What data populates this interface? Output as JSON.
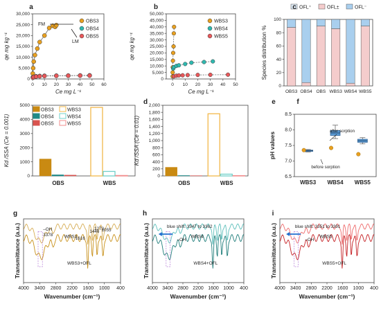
{
  "figure": {
    "panel_letters": [
      "a",
      "b",
      "c",
      "d",
      "e",
      "f",
      "g",
      "h",
      "i"
    ]
  },
  "colors": {
    "orange": "#e8a020",
    "teal": "#2fb9b0",
    "red": "#e8585a",
    "obs3_bar": "#c98a12",
    "obs4_bar": "#1f8a87",
    "obs5_bar": "#d9534f",
    "wbs3_bar": "#f2b84b",
    "wbs4_bar": "#6fd0c9",
    "wbs5_bar": "#f28d8d",
    "cation": "#dde9f5",
    "zwitterion": "#f4cccc",
    "anion": "#a9cfee",
    "box": "#5b9bd5",
    "ir_obs": "#c8901a",
    "ir_wbs4": "#27a9a4",
    "ir_wbs5": "#e8383a"
  },
  "chart_data": [
    {
      "id": "a",
      "type": "scatter",
      "xlabel": "Ce mg L⁻¹",
      "ylabel": "qe mg kg⁻¹",
      "xlim": [
        0,
        60
      ],
      "ylim": [
        0,
        30000
      ],
      "xticks": [
        0,
        10,
        20,
        30,
        40,
        50,
        60
      ],
      "yticks": [
        0,
        5000,
        10000,
        15000,
        20000,
        25000,
        30000
      ],
      "ytick_labels": [
        "0",
        "5,000",
        "10,000",
        "15,000",
        "20,000",
        "25,000",
        "30,000"
      ],
      "legend": [
        "OBS3",
        "OBS4",
        "OBS5"
      ],
      "legend_position": "top-right",
      "annotations": [
        "FM",
        "LM"
      ],
      "series": [
        {
          "name": "OBS3",
          "color": "orange",
          "x": [
            0.2,
            0.5,
            1,
            2,
            4,
            6,
            10,
            14,
            17,
            19,
            20
          ],
          "y": [
            2500,
            5000,
            8000,
            11000,
            14000,
            17000,
            20000,
            23500,
            24500,
            24000,
            24800
          ]
        },
        {
          "name": "OBS4",
          "color": "teal",
          "x": [
            0.3,
            1,
            3,
            6,
            10,
            20,
            30,
            40,
            48
          ],
          "y": [
            800,
            1000,
            1200,
            1350,
            1450,
            1500,
            1550,
            1600,
            1650
          ]
        },
        {
          "name": "OBS5",
          "color": "red",
          "x": [
            0.3,
            1,
            3,
            6,
            10,
            20,
            30,
            40,
            48
          ],
          "y": [
            600,
            900,
            1100,
            1250,
            1350,
            1450,
            1500,
            1550,
            1550
          ]
        }
      ]
    },
    {
      "id": "b",
      "type": "scatter",
      "xlabel": "Ce mg L⁻¹",
      "ylabel": "qe mg kg⁻¹",
      "xlim": [
        -5,
        50
      ],
      "ylim": [
        0,
        50000
      ],
      "xticks": [
        0,
        10,
        20,
        30,
        40,
        50
      ],
      "yticks": [
        0,
        5000,
        10000,
        15000,
        20000,
        25000,
        30000,
        35000,
        40000,
        45000,
        50000
      ],
      "ytick_labels": [
        "0",
        "5,000",
        "10,000",
        "15,000",
        "20,000",
        "25,000",
        "30,000",
        "35,000",
        "40,000",
        "45,000",
        "50,000"
      ],
      "legend": [
        "WBS3",
        "WBS4",
        "WBS5"
      ],
      "legend_position": "top-right",
      "series": [
        {
          "name": "WBS3",
          "color": "orange",
          "x": [
            0.05,
            0.1,
            0.2,
            0.3,
            0.5,
            0.8,
            1.0,
            1.2
          ],
          "y": [
            2000,
            5000,
            9000,
            14000,
            20000,
            25000,
            35000,
            40000
          ]
        },
        {
          "name": "WBS4",
          "color": "teal",
          "x": [
            0.5,
            1,
            3,
            5,
            10,
            15,
            25,
            32
          ],
          "y": [
            8000,
            9000,
            10000,
            10500,
            11500,
            12500,
            13000,
            13500
          ]
        },
        {
          "name": "WBS5",
          "color": "red",
          "x": [
            1,
            3,
            5,
            8,
            12,
            20,
            30,
            44
          ],
          "y": [
            2000,
            2500,
            2700,
            2800,
            3000,
            3100,
            3200,
            3300
          ]
        }
      ]
    },
    {
      "id": "c",
      "type": "bar",
      "ylabel": "Species distribution %",
      "ylim": [
        0,
        100
      ],
      "yticks": [
        0,
        20,
        40,
        60,
        80,
        100
      ],
      "categories": [
        "OBS3",
        "OBS4",
        "OBS",
        "WBS3",
        "WBS4",
        "WBS5"
      ],
      "legend": [
        "OFL⁺",
        "OFL±",
        "OFL⁻"
      ],
      "legend_position": "top",
      "series": [
        {
          "name": "OFL⁺",
          "color": "cation",
          "values": [
            0,
            0,
            0,
            0,
            0,
            0
          ]
        },
        {
          "name": "OFL±",
          "color": "zwitterion",
          "values": [
            88,
            5,
            90,
            86,
            4,
            90
          ]
        },
        {
          "name": "OFL⁻",
          "color": "anion",
          "values": [
            12,
            95,
            10,
            14,
            96,
            10
          ]
        }
      ]
    },
    {
      "id": "d",
      "type": "bar",
      "ylabel": "Kd /SSA (Ce = 0.001)",
      "ylim": [
        0,
        5000
      ],
      "yticks": [
        0,
        1000,
        2000,
        3000,
        4000,
        5000
      ],
      "categories": [
        "OBS",
        "WBS"
      ],
      "legend": [
        "OBS3",
        "WBS3",
        "OBS4",
        "WBS4",
        "OBS5",
        "WBS5"
      ],
      "legend_position": "top-left",
      "series": [
        {
          "name": "OBS3",
          "color": "obs3_bar",
          "values": [
            1200,
            null
          ]
        },
        {
          "name": "OBS4",
          "color": "obs4_bar",
          "values": [
            80,
            null
          ]
        },
        {
          "name": "OBS5",
          "color": "obs5_bar",
          "values": [
            60,
            null
          ]
        },
        {
          "name": "WBS3",
          "color": "wbs3_bar",
          "values": [
            null,
            4850
          ]
        },
        {
          "name": "WBS4",
          "color": "wbs4_bar",
          "values": [
            null,
            320
          ]
        },
        {
          "name": "WBS5",
          "color": "wbs5_bar",
          "values": [
            null,
            30
          ]
        }
      ]
    },
    {
      "id": "e",
      "type": "bar",
      "ylabel": "Kd /SSA (Ce = 0.01)",
      "ylim": [
        0,
        2000
      ],
      "yticks": [
        0,
        200,
        400,
        600,
        800,
        1000,
        1200,
        1400,
        1600,
        1800,
        2000
      ],
      "ytick_labels": [
        "0",
        "200",
        "400",
        "600",
        "800",
        "1,000",
        "1,200",
        "1,400",
        "1,600",
        "1,800",
        "2,000"
      ],
      "categories": [
        "OBS",
        "WBS"
      ],
      "series": [
        {
          "name": "OBS3",
          "color": "obs3_bar",
          "values": [
            245,
            null
          ]
        },
        {
          "name": "OBS4",
          "color": "obs4_bar",
          "values": [
            12,
            null
          ]
        },
        {
          "name": "OBS5",
          "color": "obs5_bar",
          "values": [
            8,
            null
          ]
        },
        {
          "name": "WBS3",
          "color": "wbs3_bar",
          "values": [
            null,
            1760
          ]
        },
        {
          "name": "WBS4",
          "color": "wbs4_bar",
          "values": [
            null,
            50
          ]
        },
        {
          "name": "WBS5",
          "color": "wbs5_bar",
          "values": [
            null,
            8
          ]
        }
      ]
    },
    {
      "id": "f",
      "type": "box",
      "ylabel": "pH values",
      "ylim": [
        6.5,
        8.5
      ],
      "yticks": [
        6.5,
        7.0,
        7.5,
        8.0,
        8.5
      ],
      "ytick_labels": [
        "6.5",
        "7.0",
        "7.5",
        "8.0",
        "8.5"
      ],
      "categories": [
        "WBS3",
        "WBS4",
        "WBS5"
      ],
      "annotations": [
        "after sorption",
        "before sorption"
      ],
      "boxes": [
        {
          "name": "WBS3",
          "q1": 7.31,
          "median": 7.33,
          "q3": 7.35,
          "whisker_low": 7.29,
          "whisker_high": 7.37,
          "mean": 7.33,
          "before": 7.35
        },
        {
          "name": "WBS4",
          "q1": 7.82,
          "median": 7.9,
          "q3": 7.98,
          "whisker_low": 7.72,
          "whisker_high": 8.15,
          "mean": 7.9,
          "before": 7.42
        },
        {
          "name": "WBS5",
          "q1": 7.6,
          "median": 7.65,
          "q3": 7.7,
          "whisker_low": 7.55,
          "whisker_high": 7.75,
          "mean": 7.66,
          "before": 7.22
        }
      ]
    },
    {
      "id": "g",
      "type": "line",
      "xlabel": "Wavenumber (cm⁻¹)",
      "ylabel": "Transmittance (a.u.)",
      "xlim": [
        4000,
        400
      ],
      "xticks": [
        4000,
        3400,
        2800,
        2200,
        1600,
        1000,
        400
      ],
      "series_labels": [
        "WBS3",
        "WBS3+OFL"
      ],
      "annotations": [
        "–OH",
        "3378",
        "1616",
        "1446",
        "1273",
        "1055"
      ]
    },
    {
      "id": "h",
      "type": "line",
      "xlabel": "Wavenumber (cm⁻¹)",
      "ylabel": "Transmittance (a.u.)",
      "xlim": [
        4000,
        400
      ],
      "xticks": [
        4000,
        3400,
        2800,
        2200,
        1600,
        1000,
        400
      ],
      "series_labels": [
        "WBS4",
        "WBS4+OFL"
      ],
      "annotations": [
        "blue shift: 3347 to 3362",
        "–OH"
      ]
    },
    {
      "id": "i",
      "type": "line",
      "xlabel": "Wavenumber (cm⁻¹)",
      "ylabel": "Transmittance (a.u.)",
      "xlim": [
        4000,
        400
      ],
      "xticks": [
        4000,
        3400,
        2800,
        2200,
        1600,
        1000,
        400
      ],
      "series_labels": [
        "WBS5",
        "WBS5+OFL"
      ],
      "annotations": [
        "blue shift: 3351 to 3391",
        "–OH"
      ]
    }
  ]
}
